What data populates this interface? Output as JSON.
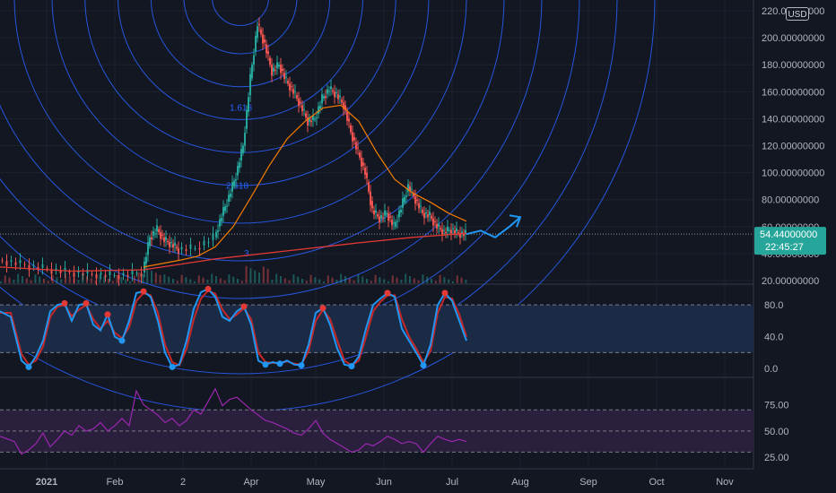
{
  "chart_data": [
    {
      "type": "candlestick",
      "panel": "price",
      "currency": "USD",
      "last_price": "54.44000000",
      "countdown": "22:45:27",
      "ylim": [
        18,
        228
      ],
      "y_ticks": [
        "220.00000000",
        "200.00000000",
        "180.00000000",
        "160.00000000",
        "140.00000000",
        "120.00000000",
        "100.00000000",
        "80.00000000",
        "60.00000000",
        "40.00000000",
        "20.00000000"
      ],
      "y_tick_values": [
        220,
        200,
        180,
        160,
        140,
        120,
        100,
        80,
        60,
        40,
        20
      ],
      "fib_labels": [
        "1.618",
        "2.618",
        "3"
      ],
      "price_path": [
        [
          0,
          35
        ],
        [
          5,
          33
        ],
        [
          10,
          30
        ],
        [
          15,
          28
        ],
        [
          20,
          26
        ],
        [
          25,
          25
        ],
        [
          30,
          24
        ],
        [
          35,
          24
        ],
        [
          40,
          26
        ],
        [
          42,
          52
        ],
        [
          44,
          58
        ],
        [
          46,
          50
        ],
        [
          48,
          47
        ],
        [
          50,
          43
        ],
        [
          55,
          44
        ],
        [
          60,
          52
        ],
        [
          62,
          68
        ],
        [
          64,
          82
        ],
        [
          66,
          98
        ],
        [
          68,
          120
        ],
        [
          70,
          170
        ],
        [
          72,
          210
        ],
        [
          74,
          195
        ],
        [
          76,
          175
        ],
        [
          78,
          180
        ],
        [
          80,
          168
        ],
        [
          82,
          160
        ],
        [
          84,
          150
        ],
        [
          86,
          138
        ],
        [
          88,
          140
        ],
        [
          90,
          155
        ],
        [
          92,
          162
        ],
        [
          94,
          158
        ],
        [
          96,
          150
        ],
        [
          98,
          130
        ],
        [
          100,
          115
        ],
        [
          102,
          100
        ],
        [
          104,
          72
        ],
        [
          106,
          66
        ],
        [
          108,
          70
        ],
        [
          110,
          60
        ],
        [
          112,
          74
        ],
        [
          114,
          90
        ],
        [
          116,
          80
        ],
        [
          118,
          70
        ],
        [
          120,
          68
        ],
        [
          122,
          60
        ],
        [
          124,
          56
        ],
        [
          126,
          58
        ],
        [
          128,
          55
        ],
        [
          130,
          54.44
        ]
      ],
      "projection_path": [
        [
          130,
          54.44
        ],
        [
          134,
          57
        ],
        [
          138,
          52
        ],
        [
          142,
          60
        ],
        [
          145,
          67
        ]
      ],
      "ma_fast_path": [
        [
          40,
          30
        ],
        [
          50,
          35
        ],
        [
          55,
          38
        ],
        [
          60,
          45
        ],
        [
          65,
          60
        ],
        [
          70,
          82
        ],
        [
          75,
          105
        ],
        [
          80,
          125
        ],
        [
          85,
          138
        ],
        [
          90,
          148
        ],
        [
          95,
          150
        ],
        [
          100,
          138
        ],
        [
          105,
          115
        ],
        [
          110,
          95
        ],
        [
          115,
          85
        ],
        [
          120,
          78
        ],
        [
          125,
          70
        ],
        [
          130,
          64
        ]
      ],
      "ma_slow_path": [
        [
          0,
          30
        ],
        [
          20,
          27
        ],
        [
          40,
          28
        ],
        [
          60,
          36
        ],
        [
          80,
          42
        ],
        [
          100,
          48
        ],
        [
          115,
          52
        ],
        [
          130,
          55
        ]
      ],
      "x_ticks": [
        "2021",
        "Feb",
        "2",
        "Apr",
        "May",
        "Jun",
        "Jul",
        "Aug",
        "Sep",
        "Oct",
        "Nov"
      ],
      "x_tick_values": [
        13,
        32,
        51,
        70,
        88,
        107,
        126,
        145,
        164,
        183,
        202
      ]
    },
    {
      "type": "line",
      "panel": "stoch",
      "ylim": [
        -10,
        105
      ],
      "y_ticks": [
        "80.0",
        "40.0",
        "0.0"
      ],
      "y_tick_values": [
        80,
        40,
        0
      ],
      "band": [
        20,
        80
      ],
      "series": [
        {
          "values": [
            [
              0,
              72
            ],
            [
              3,
              65
            ],
            [
              6,
              10
            ],
            [
              8,
              2
            ],
            [
              10,
              15
            ],
            [
              12,
              35
            ],
            [
              14,
              72
            ],
            [
              16,
              80
            ],
            [
              18,
              82
            ],
            [
              20,
              60
            ],
            [
              22,
              80
            ],
            [
              24,
              82
            ],
            [
              26,
              55
            ],
            [
              28,
              48
            ],
            [
              30,
              68
            ],
            [
              32,
              40
            ],
            [
              34,
              35
            ],
            [
              36,
              60
            ],
            [
              38,
              95
            ],
            [
              40,
              97
            ],
            [
              42,
              90
            ],
            [
              44,
              60
            ],
            [
              46,
              20
            ],
            [
              48,
              2
            ],
            [
              50,
              5
            ],
            [
              52,
              35
            ],
            [
              54,
              75
            ],
            [
              56,
              96
            ],
            [
              58,
              100
            ],
            [
              60,
              90
            ],
            [
              62,
              65
            ],
            [
              64,
              60
            ],
            [
              66,
              72
            ],
            [
              68,
              78
            ],
            [
              70,
              55
            ],
            [
              72,
              10
            ],
            [
              74,
              5
            ],
            [
              76,
              8
            ],
            [
              78,
              6
            ],
            [
              80,
              10
            ],
            [
              82,
              5
            ],
            [
              84,
              4
            ],
            [
              86,
              30
            ],
            [
              88,
              70
            ],
            [
              90,
              76
            ],
            [
              92,
              55
            ],
            [
              94,
              25
            ],
            [
              96,
              5
            ],
            [
              98,
              3
            ],
            [
              100,
              15
            ],
            [
              102,
              50
            ],
            [
              104,
              80
            ],
            [
              106,
              88
            ],
            [
              108,
              95
            ],
            [
              110,
              90
            ],
            [
              112,
              50
            ],
            [
              114,
              35
            ],
            [
              116,
              20
            ],
            [
              118,
              4
            ],
            [
              120,
              30
            ],
            [
              122,
              80
            ],
            [
              124,
              95
            ],
            [
              126,
              85
            ],
            [
              128,
              60
            ],
            [
              130,
              35
            ]
          ]
        },
        {
          "values": [
            [
              0,
              70
            ],
            [
              3,
              70
            ],
            [
              6,
              18
            ],
            [
              8,
              5
            ],
            [
              10,
              10
            ],
            [
              12,
              28
            ],
            [
              14,
              65
            ],
            [
              16,
              78
            ],
            [
              18,
              80
            ],
            [
              20,
              66
            ],
            [
              22,
              74
            ],
            [
              24,
              80
            ],
            [
              26,
              62
            ],
            [
              28,
              50
            ],
            [
              30,
              60
            ],
            [
              32,
              45
            ],
            [
              34,
              38
            ],
            [
              36,
              52
            ],
            [
              38,
              85
            ],
            [
              40,
              95
            ],
            [
              42,
              92
            ],
            [
              44,
              70
            ],
            [
              46,
              30
            ],
            [
              48,
              8
            ],
            [
              50,
              4
            ],
            [
              52,
              25
            ],
            [
              54,
              62
            ],
            [
              56,
              88
            ],
            [
              58,
              98
            ],
            [
              60,
              94
            ],
            [
              62,
              74
            ],
            [
              64,
              62
            ],
            [
              66,
              68
            ],
            [
              68,
              76
            ],
            [
              70,
              62
            ],
            [
              72,
              20
            ],
            [
              74,
              8
            ],
            [
              76,
              7
            ],
            [
              78,
              7
            ],
            [
              80,
              9
            ],
            [
              82,
              6
            ],
            [
              84,
              5
            ],
            [
              86,
              22
            ],
            [
              88,
              60
            ],
            [
              90,
              74
            ],
            [
              92,
              62
            ],
            [
              94,
              35
            ],
            [
              96,
              10
            ],
            [
              98,
              4
            ],
            [
              100,
              10
            ],
            [
              102,
              40
            ],
            [
              104,
              72
            ],
            [
              106,
              84
            ],
            [
              108,
              92
            ],
            [
              110,
              92
            ],
            [
              112,
              62
            ],
            [
              114,
              40
            ],
            [
              116,
              25
            ],
            [
              118,
              8
            ],
            [
              120,
              22
            ],
            [
              122,
              70
            ],
            [
              124,
              90
            ],
            [
              126,
              88
            ],
            [
              128,
              68
            ],
            [
              130,
              40
            ]
          ]
        }
      ]
    },
    {
      "type": "line",
      "panel": "rsi",
      "ylim": [
        15,
        100
      ],
      "y_ticks": [
        "75.00",
        "50.00",
        "25.00"
      ],
      "y_tick_values": [
        75,
        50,
        25
      ],
      "band": [
        30,
        70
      ],
      "series": [
        {
          "values": [
            [
              0,
              45
            ],
            [
              4,
              40
            ],
            [
              6,
              28
            ],
            [
              8,
              32
            ],
            [
              10,
              38
            ],
            [
              12,
              48
            ],
            [
              14,
              35
            ],
            [
              16,
              42
            ],
            [
              18,
              50
            ],
            [
              20,
              46
            ],
            [
              22,
              55
            ],
            [
              24,
              50
            ],
            [
              26,
              52
            ],
            [
              28,
              58
            ],
            [
              30,
              50
            ],
            [
              32,
              55
            ],
            [
              34,
              62
            ],
            [
              36,
              55
            ],
            [
              38,
              88
            ],
            [
              40,
              75
            ],
            [
              42,
              70
            ],
            [
              44,
              65
            ],
            [
              46,
              58
            ],
            [
              48,
              62
            ],
            [
              50,
              55
            ],
            [
              52,
              60
            ],
            [
              54,
              70
            ],
            [
              56,
              66
            ],
            [
              58,
              78
            ],
            [
              60,
              90
            ],
            [
              62,
              74
            ],
            [
              64,
              80
            ],
            [
              66,
              82
            ],
            [
              68,
              76
            ],
            [
              70,
              70
            ],
            [
              72,
              65
            ],
            [
              74,
              60
            ],
            [
              76,
              58
            ],
            [
              78,
              55
            ],
            [
              80,
              52
            ],
            [
              82,
              48
            ],
            [
              84,
              46
            ],
            [
              86,
              52
            ],
            [
              88,
              60
            ],
            [
              90,
              48
            ],
            [
              92,
              42
            ],
            [
              94,
              38
            ],
            [
              96,
              34
            ],
            [
              98,
              30
            ],
            [
              100,
              32
            ],
            [
              102,
              38
            ],
            [
              104,
              36
            ],
            [
              106,
              40
            ],
            [
              108,
              45
            ],
            [
              110,
              42
            ],
            [
              112,
              38
            ],
            [
              114,
              40
            ],
            [
              116,
              38
            ],
            [
              118,
              30
            ],
            [
              120,
              38
            ],
            [
              122,
              45
            ],
            [
              124,
              42
            ],
            [
              126,
              40
            ],
            [
              128,
              42
            ],
            [
              130,
              40
            ]
          ]
        }
      ]
    }
  ],
  "colors": {
    "background": "#131722",
    "grid": "#1e222d",
    "up_candle": "#26a69a",
    "down_candle": "#ef5350",
    "fib_circle": "#2962ff",
    "ma_fast": "#f57c00",
    "ma_slow": "#e53935",
    "projection": "#2196f3",
    "stoch_k": "#2196f3",
    "stoch_d": "#c62828",
    "stoch_band": "#1c2b45",
    "rsi_line": "#9c27b0",
    "rsi_band": "#2a1f3d",
    "price_tag": "#26a69a"
  },
  "usd_button": "USD"
}
